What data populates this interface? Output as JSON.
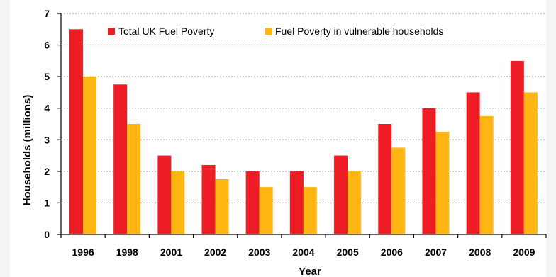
{
  "chart_data": {
    "type": "bar",
    "categories": [
      "1996",
      "1998",
      "2001",
      "2002",
      "2003",
      "2004",
      "2005",
      "2006",
      "2007",
      "2008",
      "2009"
    ],
    "series": [
      {
        "name": "Total UK Fuel Poverty",
        "color": "#ee1c25",
        "values": [
          6.5,
          4.75,
          2.5,
          2.2,
          2.0,
          2.0,
          2.5,
          3.5,
          4.0,
          4.5,
          5.5
        ]
      },
      {
        "name": "Fuel Poverty in vulnerable households",
        "color": "#ffb612",
        "values": [
          5.0,
          3.5,
          2.0,
          1.75,
          1.5,
          1.5,
          2.0,
          2.75,
          3.25,
          3.75,
          4.5
        ]
      }
    ],
    "xlabel": "Year",
    "ylabel": "Households (millions)",
    "ylim": [
      0,
      7
    ],
    "yticks": [
      "0",
      "1",
      "2",
      "3",
      "4",
      "5",
      "6",
      "7"
    ],
    "grid": true,
    "legend_position": "top"
  }
}
